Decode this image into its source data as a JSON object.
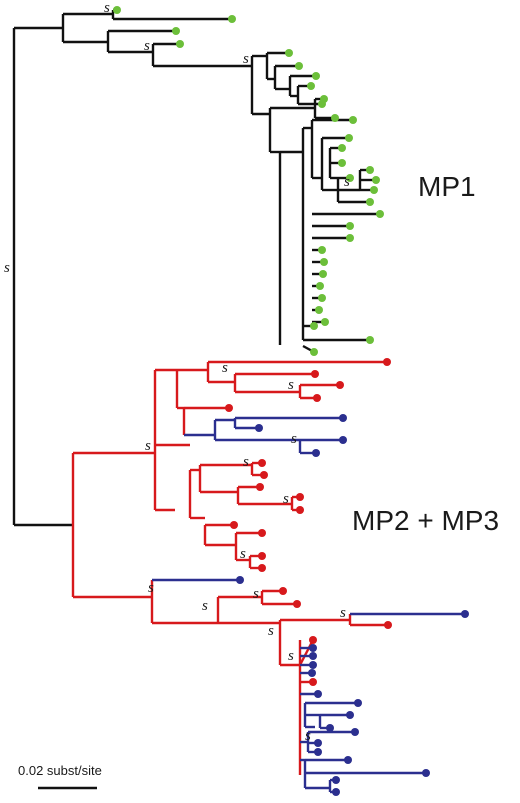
{
  "clades": {
    "mp1": "MP1",
    "mp23": "MP2 + MP3"
  },
  "support_symbol": "s",
  "scale_bar": {
    "label": "0.02 subst/site"
  },
  "colors": {
    "black": "#111111",
    "red": "#d7191c",
    "blue": "#2b2f8f",
    "green": "#6cbf3a"
  }
}
